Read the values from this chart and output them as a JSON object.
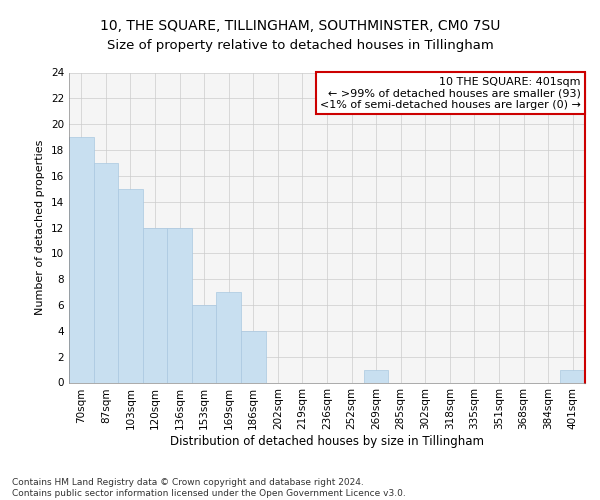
{
  "title1": "10, THE SQUARE, TILLINGHAM, SOUTHMINSTER, CM0 7SU",
  "title2": "Size of property relative to detached houses in Tillingham",
  "xlabel": "Distribution of detached houses by size in Tillingham",
  "ylabel": "Number of detached properties",
  "categories": [
    "70sqm",
    "87sqm",
    "103sqm",
    "120sqm",
    "136sqm",
    "153sqm",
    "169sqm",
    "186sqm",
    "202sqm",
    "219sqm",
    "236sqm",
    "252sqm",
    "269sqm",
    "285sqm",
    "302sqm",
    "318sqm",
    "335sqm",
    "351sqm",
    "368sqm",
    "384sqm",
    "401sqm"
  ],
  "values": [
    19,
    17,
    15,
    12,
    12,
    6,
    7,
    4,
    0,
    0,
    0,
    0,
    1,
    0,
    0,
    0,
    0,
    0,
    0,
    0,
    1
  ],
  "bar_color": "#c8dff0",
  "bar_edge_color": "#aac8e0",
  "annotation_text_line1": "10 THE SQUARE: 401sqm",
  "annotation_text_line2": "← >99% of detached houses are smaller (93)",
  "annotation_text_line3": "<1% of semi-detached houses are larger (0) →",
  "annotation_box_facecolor": "#ffffff",
  "annotation_box_edgecolor": "#cc0000",
  "right_spine_color": "#cc0000",
  "ylim": [
    0,
    24
  ],
  "yticks": [
    0,
    2,
    4,
    6,
    8,
    10,
    12,
    14,
    16,
    18,
    20,
    22,
    24
  ],
  "grid_color": "#cccccc",
  "footer_text": "Contains HM Land Registry data © Crown copyright and database right 2024.\nContains public sector information licensed under the Open Government Licence v3.0.",
  "title1_fontsize": 10,
  "title2_fontsize": 9.5,
  "xlabel_fontsize": 8.5,
  "ylabel_fontsize": 8,
  "tick_fontsize": 7.5,
  "annotation_fontsize": 8,
  "footer_fontsize": 6.5,
  "bg_color": "#f5f5f5"
}
